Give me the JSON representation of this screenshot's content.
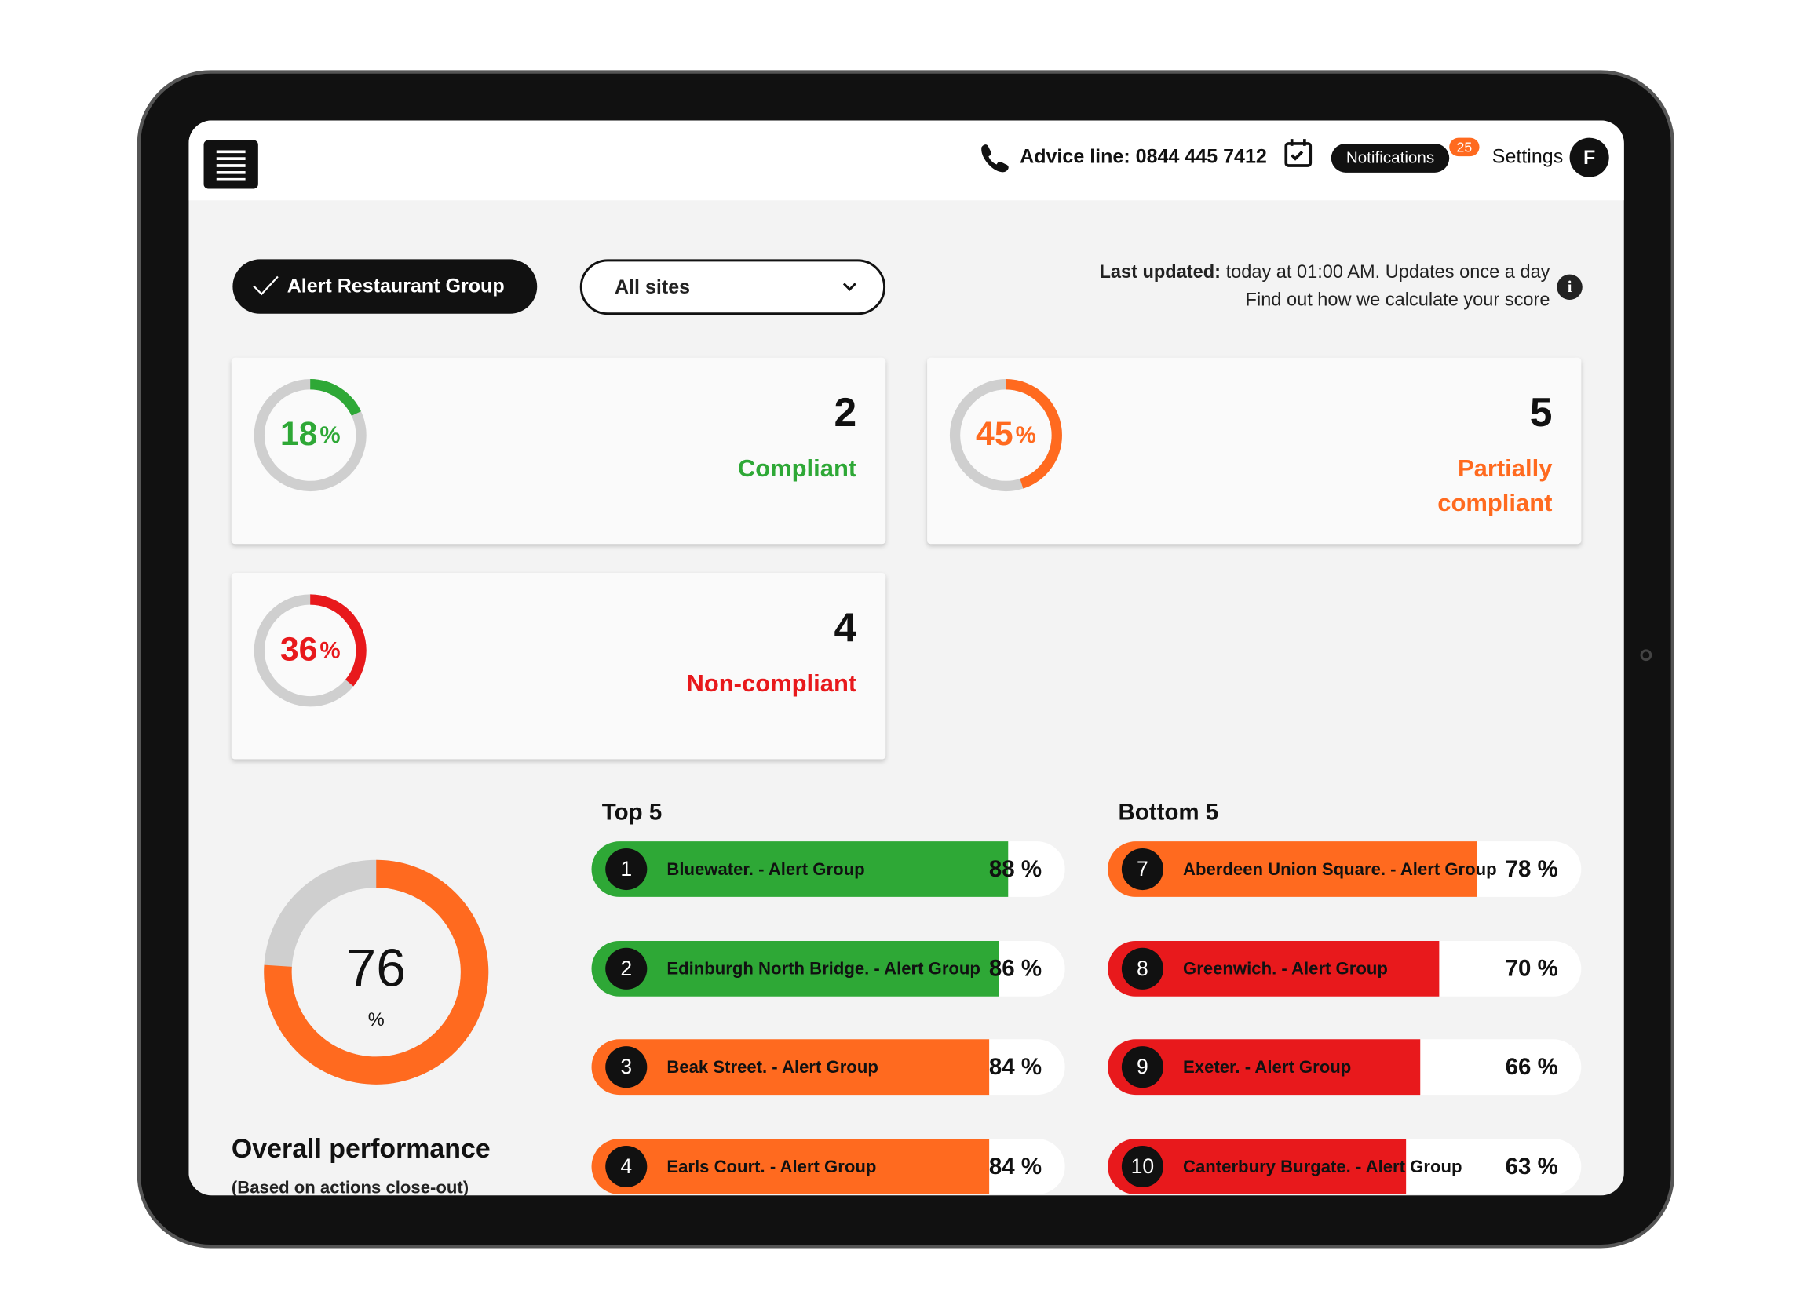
{
  "header": {
    "advice_line": "Advice line: 0844 445 7412",
    "notifications": "Notifications",
    "notification_count": "25",
    "settings": "Settings",
    "avatar": "F"
  },
  "filters": {
    "group": "Alert Restaurant Group",
    "sites": "All sites"
  },
  "update_info": {
    "label": "Last updated:",
    "text": " today at 01:00 AM. Updates once a day",
    "link": "Find out how we calculate your score"
  },
  "summary_cards": [
    {
      "percent": 18,
      "unit": "%",
      "count": 2,
      "label": [
        "Compliant"
      ],
      "color": "#2ea836"
    },
    {
      "percent": 45,
      "unit": "%",
      "count": 5,
      "label": [
        "Partially",
        "compliant"
      ],
      "color": "#ff6a1f"
    },
    {
      "percent": 36,
      "unit": "%",
      "count": 4,
      "label": [
        "Non-compliant"
      ],
      "color": "#e8191c"
    }
  ],
  "overall": {
    "value": 76,
    "unit": "%",
    "title": "Overall performance",
    "subtitle": "(Based on actions close-out)",
    "color": "#ff6a1f"
  },
  "top5": {
    "title": "Top 5",
    "sites": [
      {
        "rank": 1,
        "name": "Bluewater. - Alert Group",
        "value": 88,
        "value_label": "88 %",
        "color": "#2ea836"
      },
      {
        "rank": 2,
        "name": "Edinburgh North Bridge. - Alert Group",
        "value": 86,
        "value_label": "86 %",
        "color": "#2ea836"
      },
      {
        "rank": 3,
        "name": "Beak Street. - Alert Group",
        "value": 84,
        "value_label": "84 %",
        "color": "#ff6a1f"
      },
      {
        "rank": 4,
        "name": "Earls Court. - Alert Group",
        "value": 84,
        "value_label": "84 %",
        "color": "#ff6a1f"
      }
    ]
  },
  "bottom5": {
    "title": "Bottom 5",
    "sites": [
      {
        "rank": 7,
        "name": "Aberdeen Union Square. - Alert Group",
        "value": 78,
        "value_label": "78 %",
        "color": "#ff6a1f"
      },
      {
        "rank": 8,
        "name": "Greenwich. - Alert Group",
        "value": 70,
        "value_label": "70 %",
        "color": "#e8191c"
      },
      {
        "rank": 9,
        "name": "Exeter. - Alert Group",
        "value": 66,
        "value_label": "66 %",
        "color": "#e8191c"
      },
      {
        "rank": 10,
        "name": "Canterbury Burgate. - Alert Group",
        "value": 63,
        "value_label": "63 %",
        "color": "#e8191c"
      }
    ]
  }
}
